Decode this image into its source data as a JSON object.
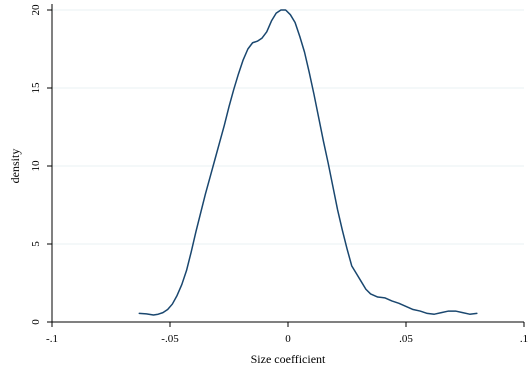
{
  "chart_data": {
    "type": "line",
    "title": "",
    "xlabel": "Size coefficient",
    "ylabel": "density",
    "xlim": [
      -0.1,
      0.1
    ],
    "ylim": [
      0,
      20
    ],
    "x_ticks": [
      -0.1,
      -0.05,
      0,
      0.05,
      0.1
    ],
    "x_tick_labels": [
      "-.1",
      "-.05",
      "0",
      ".05",
      ".1"
    ],
    "y_ticks": [
      0,
      5,
      10,
      15,
      20
    ],
    "y_tick_labels": [
      "0",
      "5",
      "10",
      "15",
      "20"
    ],
    "grid": "horizontal",
    "legend": "none",
    "line_color": "#1a476f",
    "grid_color": "#eaf2f3",
    "series": [
      {
        "x": [
          -0.063,
          -0.06,
          -0.057,
          -0.055,
          -0.053,
          -0.051,
          -0.049,
          -0.047,
          -0.045,
          -0.043,
          -0.041,
          -0.039,
          -0.037,
          -0.035,
          -0.033,
          -0.031,
          -0.029,
          -0.027,
          -0.025,
          -0.023,
          -0.021,
          -0.019,
          -0.017,
          -0.015,
          -0.013,
          -0.011,
          -0.009,
          -0.007,
          -0.005,
          -0.003,
          -0.001,
          0.001,
          0.003,
          0.005,
          0.007,
          0.009,
          0.011,
          0.013,
          0.015,
          0.017,
          0.019,
          0.021,
          0.023,
          0.025,
          0.027,
          0.029,
          0.031,
          0.033,
          0.035,
          0.038,
          0.041,
          0.044,
          0.047,
          0.05,
          0.053,
          0.056,
          0.059,
          0.062,
          0.065,
          0.068,
          0.071,
          0.074,
          0.077,
          0.08
        ],
        "y": [
          0.55,
          0.52,
          0.45,
          0.5,
          0.6,
          0.8,
          1.15,
          1.7,
          2.4,
          3.3,
          4.5,
          5.8,
          7.0,
          8.2,
          9.3,
          10.4,
          11.5,
          12.6,
          13.8,
          14.9,
          15.9,
          16.8,
          17.5,
          17.9,
          18.0,
          18.2,
          18.6,
          19.3,
          19.8,
          20.0,
          20.0,
          19.7,
          19.2,
          18.3,
          17.3,
          16.0,
          14.6,
          13.1,
          11.6,
          10.2,
          8.7,
          7.2,
          5.9,
          4.7,
          3.6,
          3.1,
          2.6,
          2.1,
          1.8,
          1.6,
          1.55,
          1.35,
          1.2,
          1.0,
          0.8,
          0.7,
          0.55,
          0.5,
          0.6,
          0.7,
          0.7,
          0.6,
          0.5,
          0.55
        ]
      }
    ]
  }
}
